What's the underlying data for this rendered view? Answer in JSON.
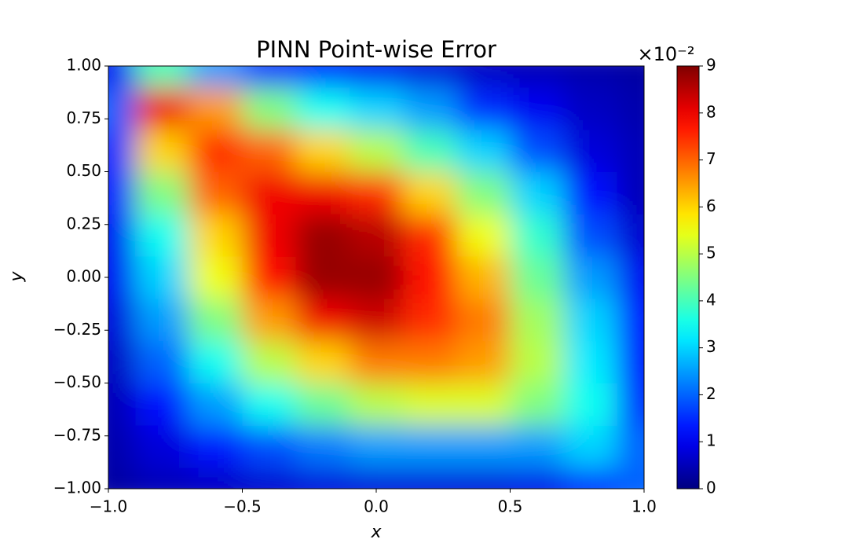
{
  "chart_data": {
    "type": "heatmap",
    "title": "PINN Point-wise Error",
    "x_label": "x",
    "y_label": "y",
    "colorbar_offset": "×10⁻²",
    "colormap": "jet",
    "x": [
      -1,
      -0.8,
      -0.6,
      -0.4,
      -0.2,
      0,
      0.2,
      0.4,
      0.6,
      0.8,
      1
    ],
    "y": [
      -1,
      -0.8,
      -0.6,
      -0.4,
      -0.2,
      0,
      0.2,
      0.4,
      0.6,
      0.8,
      1
    ],
    "z": [
      [
        0.3,
        0.5,
        0.6,
        0.7,
        0.8,
        0.8,
        0.8,
        0.8,
        0.9,
        1.5,
        2
      ],
      [
        0.4,
        0.8,
        1.3,
        1.8,
        2.2,
        2.5,
        2.5,
        2.5,
        2.5,
        3,
        2
      ],
      [
        0.5,
        1.2,
        2.5,
        3.5,
        4.3,
        5,
        5.3,
        5.3,
        4.5,
        3.5,
        1.5
      ],
      [
        0.6,
        2,
        3.5,
        5,
        6,
        6.8,
        6.8,
        6.5,
        5,
        3.2,
        1.2
      ],
      [
        0.8,
        2.5,
        4.5,
        6.5,
        8,
        8.3,
        7.5,
        6.8,
        4.8,
        3,
        1.2
      ],
      [
        1,
        3,
        5.5,
        7.8,
        8.8,
        8.8,
        7.8,
        6.3,
        4.3,
        2.5,
        1
      ],
      [
        1,
        3.5,
        6,
        8,
        8.8,
        8.5,
        7.5,
        5.5,
        3.8,
        1.8,
        0.7
      ],
      [
        1.2,
        4.5,
        7,
        8,
        8,
        7.5,
        6,
        4.5,
        3,
        1.2,
        0.5
      ],
      [
        1.5,
        6,
        7.5,
        7,
        6,
        5,
        4,
        3,
        1.8,
        0.8,
        0.5
      ],
      [
        2,
        8,
        6.5,
        4.5,
        3.5,
        3,
        2.5,
        1.5,
        1,
        0.6,
        0.4
      ],
      [
        1,
        4,
        2.5,
        1.5,
        1.2,
        1,
        0.8,
        0.6,
        0.5,
        0.4,
        0.3
      ]
    ],
    "xlim": [
      -1,
      1
    ],
    "ylim": [
      -1,
      1
    ],
    "clim": [
      0,
      9
    ],
    "xticks": [
      {
        "value": -1,
        "label": "−1.0"
      },
      {
        "value": -0.5,
        "label": "−0.5"
      },
      {
        "value": 0,
        "label": "0.0"
      },
      {
        "value": 0.5,
        "label": "0.5"
      },
      {
        "value": 1,
        "label": "1.0"
      }
    ],
    "yticks": [
      {
        "value": -1,
        "label": "−1.00"
      },
      {
        "value": -0.75,
        "label": "−0.75"
      },
      {
        "value": -0.5,
        "label": "−0.50"
      },
      {
        "value": -0.25,
        "label": "−0.25"
      },
      {
        "value": 0,
        "label": "0.00"
      },
      {
        "value": 0.25,
        "label": "0.25"
      },
      {
        "value": 0.5,
        "label": "0.50"
      },
      {
        "value": 0.75,
        "label": "0.75"
      },
      {
        "value": 1,
        "label": "1.00"
      }
    ],
    "cticks": [
      0,
      1,
      2,
      3,
      4,
      5,
      6,
      7,
      8,
      9
    ]
  }
}
